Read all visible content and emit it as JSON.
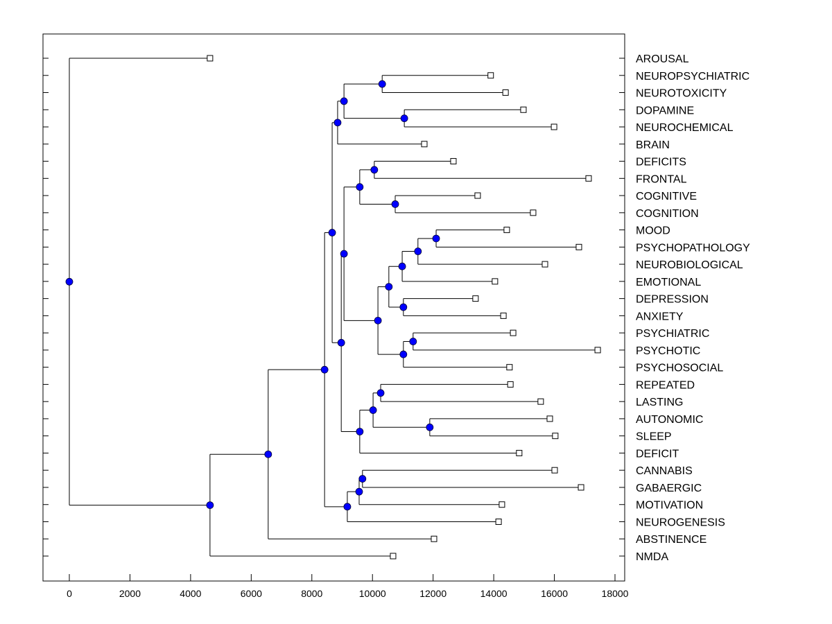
{
  "chart_data": {
    "type": "dendrogram",
    "title": "",
    "xlabel": "",
    "ylabel": "",
    "xlim": [
      -900,
      18300
    ],
    "x_ticks": [
      0,
      2000,
      4000,
      6000,
      8000,
      10000,
      12000,
      14000,
      16000,
      18000
    ],
    "x_tick_labels": [
      "0",
      "2000",
      "4000",
      "6000",
      "8000",
      "10000",
      "12000",
      "14000",
      "16000",
      "18000"
    ],
    "grid": false,
    "colors": {
      "node_fill": "#0000ff",
      "line": "#000000",
      "leaf_fill": "#ffffff"
    },
    "leaves": [
      {
        "label": "AROUSAL",
        "value": 4640
      },
      {
        "label": "NEUROPSYCHIATRIC",
        "value": 13900
      },
      {
        "label": "NEUROTOXICITY",
        "value": 14390
      },
      {
        "label": "DOPAMINE",
        "value": 14980
      },
      {
        "label": "NEUROCHEMICAL",
        "value": 15990
      },
      {
        "label": "BRAIN",
        "value": 11710
      },
      {
        "label": "DEFICITS",
        "value": 12670
      },
      {
        "label": "FRONTAL",
        "value": 17130
      },
      {
        "label": "COGNITIVE",
        "value": 13470
      },
      {
        "label": "COGNITION",
        "value": 15300
      },
      {
        "label": "MOOD",
        "value": 14430
      },
      {
        "label": "PSYCHOPATHOLOGY",
        "value": 16810
      },
      {
        "label": "NEUROBIOLOGICAL",
        "value": 15690
      },
      {
        "label": "EMOTIONAL",
        "value": 14040
      },
      {
        "label": "DEPRESSION",
        "value": 13400
      },
      {
        "label": "ANXIETY",
        "value": 14320
      },
      {
        "label": "PSYCHIATRIC",
        "value": 14640
      },
      {
        "label": "PSYCHOTIC",
        "value": 17430
      },
      {
        "label": "PSYCHOSOCIAL",
        "value": 14520
      },
      {
        "label": "REPEATED",
        "value": 14550
      },
      {
        "label": "LASTING",
        "value": 15550
      },
      {
        "label": "AUTONOMIC",
        "value": 15850
      },
      {
        "label": "SLEEP",
        "value": 16030
      },
      {
        "label": "DEFICIT",
        "value": 14840
      },
      {
        "label": "CANNABIS",
        "value": 16010
      },
      {
        "label": "GABAERGIC",
        "value": 16880
      },
      {
        "label": "MOTIVATION",
        "value": 14270
      },
      {
        "label": "NEUROGENESIS",
        "value": 14160
      },
      {
        "label": "ABSTINENCE",
        "value": 12030
      },
      {
        "label": "NMDA",
        "value": 10680
      }
    ],
    "tree": {
      "value": 0,
      "children": [
        {
          "leaf": 0
        },
        {
          "value": 4640,
          "children": [
            {
              "value": 6560,
              "children": [
                {
                  "value": 8420,
                  "children": [
                    {
                      "value": 8670,
                      "children": [
                        {
                          "value": 8850,
                          "children": [
                            {
                              "value": 9060,
                              "children": [
                                {
                                  "value": 10320,
                                  "children": [
                                    {
                                      "leaf": 1
                                    },
                                    {
                                      "leaf": 2
                                    }
                                  ]
                                },
                                {
                                  "value": 11050,
                                  "children": [
                                    {
                                      "leaf": 3
                                    },
                                    {
                                      "leaf": 4
                                    }
                                  ]
                                }
                              ]
                            },
                            {
                              "leaf": 5
                            }
                          ]
                        },
                        {
                          "value": 8970,
                          "children": [
                            {
                              "value": 9060,
                              "children": [
                                {
                                  "value": 9580,
                                  "children": [
                                    {
                                      "value": 10060,
                                      "children": [
                                        {
                                          "leaf": 6
                                        },
                                        {
                                          "leaf": 7
                                        }
                                      ]
                                    },
                                    {
                                      "value": 10750,
                                      "children": [
                                        {
                                          "leaf": 8
                                        },
                                        {
                                          "leaf": 9
                                        }
                                      ]
                                    }
                                  ]
                                },
                                {
                                  "value": 10180,
                                  "children": [
                                    {
                                      "value": 10540,
                                      "children": [
                                        {
                                          "value": 10980,
                                          "children": [
                                            {
                                              "value": 11500,
                                              "children": [
                                                {
                                                  "value": 12100,
                                                  "children": [
                                                    {
                                                      "leaf": 10
                                                    },
                                                    {
                                                      "leaf": 11
                                                    }
                                                  ]
                                                },
                                                {
                                                  "leaf": 12
                                                }
                                              ]
                                            },
                                            {
                                              "leaf": 13
                                            }
                                          ]
                                        },
                                        {
                                          "value": 11020,
                                          "children": [
                                            {
                                              "leaf": 14
                                            },
                                            {
                                              "leaf": 15
                                            }
                                          ]
                                        }
                                      ]
                                    },
                                    {
                                      "value": 11020,
                                      "children": [
                                        {
                                          "value": 11340,
                                          "children": [
                                            {
                                              "leaf": 16
                                            },
                                            {
                                              "leaf": 17
                                            }
                                          ]
                                        },
                                        {
                                          "leaf": 18
                                        }
                                      ]
                                    }
                                  ]
                                }
                              ]
                            },
                            {
                              "value": 9580,
                              "children": [
                                {
                                  "value": 10020,
                                  "children": [
                                    {
                                      "value": 10270,
                                      "children": [
                                        {
                                          "leaf": 19
                                        },
                                        {
                                          "leaf": 20
                                        }
                                      ]
                                    },
                                    {
                                      "value": 11890,
                                      "children": [
                                        {
                                          "leaf": 21
                                        },
                                        {
                                          "leaf": 22
                                        }
                                      ]
                                    }
                                  ]
                                },
                                {
                                  "leaf": 23
                                }
                              ]
                            }
                          ]
                        }
                      ]
                    },
                    {
                      "value": 9170,
                      "children": [
                        {
                          "value": 9560,
                          "children": [
                            {
                              "value": 9670,
                              "children": [
                                {
                                  "leaf": 24
                                },
                                {
                                  "leaf": 25
                                }
                              ]
                            },
                            {
                              "leaf": 26
                            }
                          ]
                        },
                        {
                          "leaf": 27
                        }
                      ]
                    }
                  ]
                },
                {
                  "leaf": 28
                }
              ]
            },
            {
              "leaf": 29
            }
          ]
        }
      ]
    }
  }
}
